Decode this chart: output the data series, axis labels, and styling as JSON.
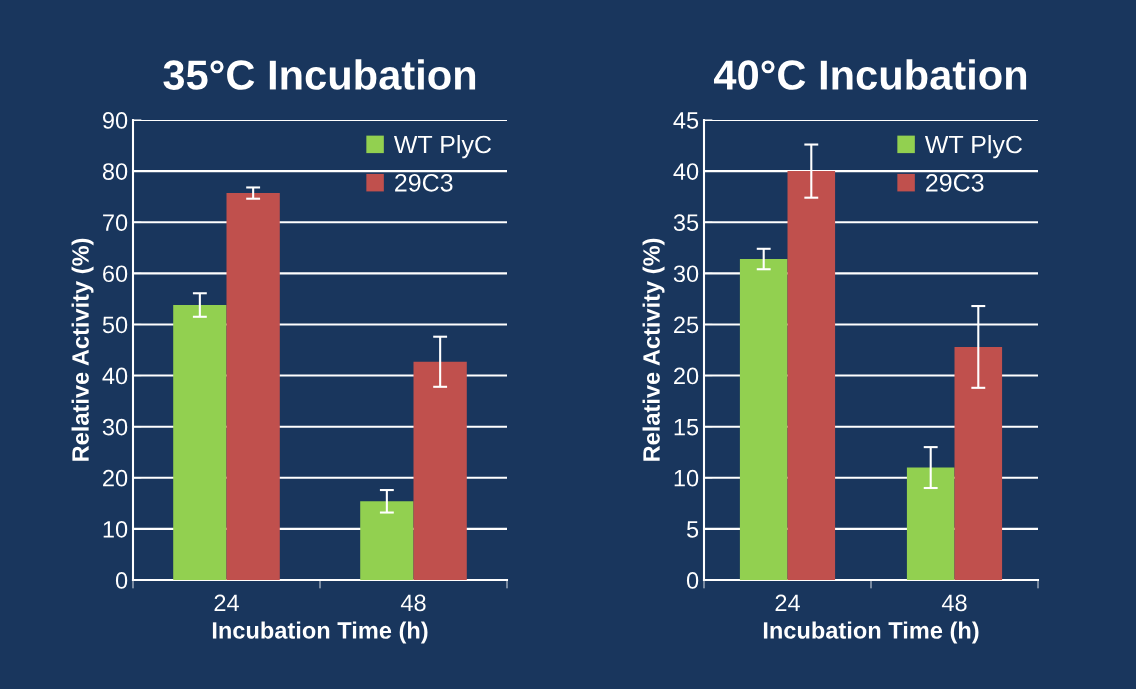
{
  "chart_data": [
    {
      "type": "bar",
      "title": "35°C Incubation",
      "xlabel": "Incubation Time (h)",
      "ylabel": "Relative Activity (%)",
      "categories": [
        "24",
        "48"
      ],
      "series": [
        {
          "name": "WT PlyC",
          "color": "#92d050",
          "values": [
            53.8,
            15.4
          ],
          "errors": [
            2.3,
            2.2
          ]
        },
        {
          "name": "29C3",
          "color": "#c0504d",
          "values": [
            75.7,
            42.7
          ],
          "errors": [
            1.1,
            4.9
          ]
        }
      ],
      "ylim": [
        0,
        90
      ],
      "yticks": [
        0,
        10,
        20,
        30,
        40,
        50,
        60,
        70,
        80,
        90
      ],
      "grid": "y",
      "legend": "top right"
    },
    {
      "type": "bar",
      "title": "40°C Incubation",
      "xlabel": "Incubation Time (h)",
      "ylabel": "Relative Activity (%)",
      "categories": [
        "24",
        "48"
      ],
      "series": [
        {
          "name": "WT PlyC",
          "color": "#92d050",
          "values": [
            31.4,
            11.0
          ],
          "errors": [
            1.0,
            2.0
          ]
        },
        {
          "name": "29C3",
          "color": "#c0504d",
          "values": [
            40.0,
            22.8
          ],
          "errors": [
            2.6,
            4.0
          ]
        }
      ],
      "ylim": [
        0,
        45
      ],
      "yticks": [
        0,
        5,
        10,
        15,
        20,
        25,
        30,
        35,
        40,
        45
      ],
      "grid": "y",
      "legend": "top right"
    }
  ]
}
